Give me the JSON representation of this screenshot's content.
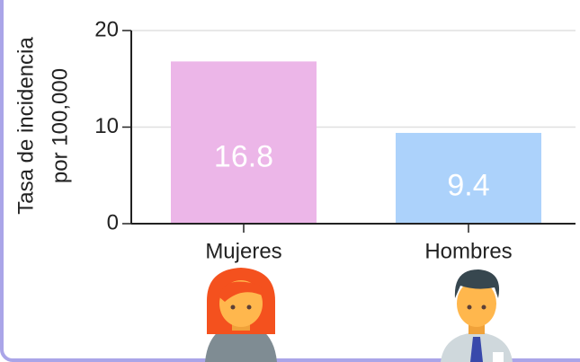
{
  "chart_data": {
    "type": "bar",
    "ylabel": [
      "Tasa de incidencia",
      "por 100,000"
    ],
    "categories": [
      "Mujeres",
      "Hombres"
    ],
    "values": [
      16.8,
      9.4
    ],
    "colors": [
      "#ecb6e8",
      "#acd2fb"
    ],
    "ylim": [
      0,
      20
    ],
    "yticks": [
      0,
      10,
      20
    ],
    "grid": true
  }
}
